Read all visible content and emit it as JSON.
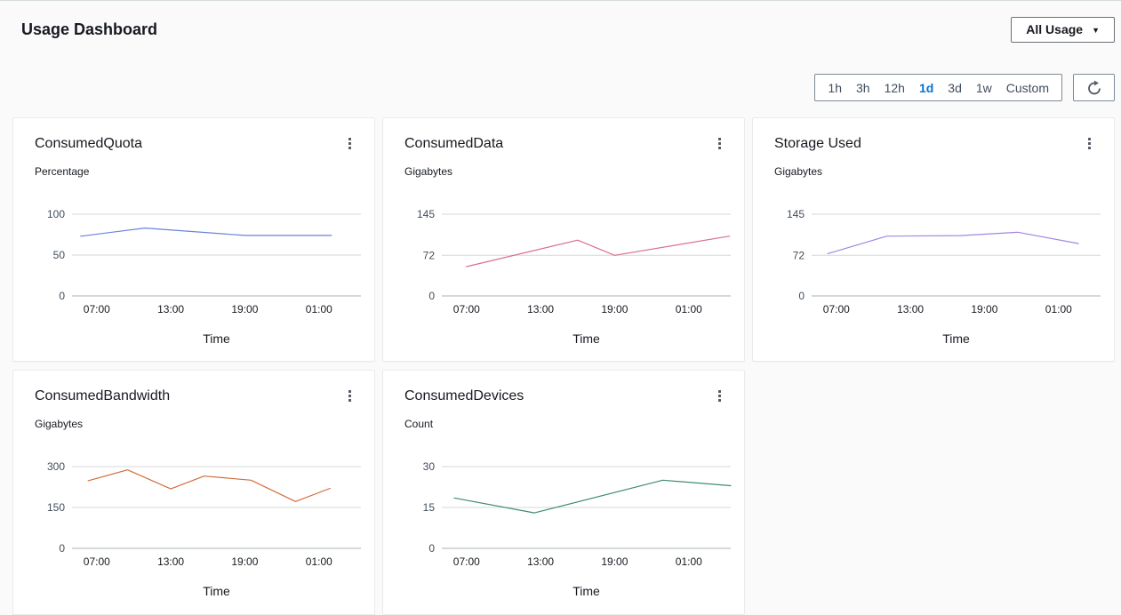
{
  "page": {
    "title": "Usage Dashboard"
  },
  "header": {
    "dashboard_dropdown": {
      "label": "All Usage",
      "caret_icon": "▼"
    }
  },
  "toolbar": {
    "time_ranges": [
      {
        "label": "1h",
        "selected": false
      },
      {
        "label": "3h",
        "selected": false
      },
      {
        "label": "12h",
        "selected": false
      },
      {
        "label": "1d",
        "selected": true
      },
      {
        "label": "3d",
        "selected": false
      },
      {
        "label": "1w",
        "selected": false
      },
      {
        "label": "Custom",
        "selected": false
      }
    ],
    "selected_color": "#0972d3",
    "refresh_icon": "refresh-arrow"
  },
  "charts": [
    {
      "title": "ConsumedQuota",
      "menu_icon": "kebab-vertical",
      "chart_data": {
        "type": "line",
        "title": "ConsumedQuota",
        "ylabel": "Percentage",
        "xlabel": "Time",
        "x_ticks": [
          "07:00",
          "13:00",
          "19:00",
          "01:00"
        ],
        "x_tick_hours": [
          2,
          8,
          14,
          20
        ],
        "x_axis_start": "05:00",
        "x_axis_span_hours": 23.4,
        "y_ticks": [
          0,
          50,
          100
        ],
        "ylim": [
          0,
          100
        ],
        "grid": true,
        "legend": "none",
        "line_color": "#6a82de",
        "x_unit": "hours_after_axis_start",
        "points": [
          [
            0.7,
            73
          ],
          [
            5.9,
            83
          ],
          [
            14,
            74
          ],
          [
            21,
            74
          ]
        ]
      }
    },
    {
      "title": "ConsumedData",
      "menu_icon": "kebab-vertical",
      "chart_data": {
        "type": "line",
        "title": "ConsumedData",
        "ylabel": "Gigabytes",
        "xlabel": "Time",
        "x_ticks": [
          "07:00",
          "13:00",
          "19:00",
          "01:00"
        ],
        "x_tick_hours": [
          2,
          8,
          14,
          20
        ],
        "x_axis_start": "05:00",
        "x_axis_span_hours": 23.4,
        "y_ticks": [
          0,
          72,
          145
        ],
        "ylim": [
          0,
          145
        ],
        "grid": true,
        "legend": "none",
        "line_color": "#d9708a",
        "x_unit": "hours_after_axis_start",
        "points": [
          [
            2,
            52
          ],
          [
            11,
            99
          ],
          [
            14,
            72
          ],
          [
            23.3,
            106
          ]
        ]
      }
    },
    {
      "title": "Storage Used",
      "menu_icon": "kebab-vertical",
      "chart_data": {
        "type": "line",
        "title": "Storage Used",
        "ylabel": "Gigabytes",
        "xlabel": "Time",
        "x_ticks": [
          "07:00",
          "13:00",
          "19:00",
          "01:00"
        ],
        "x_tick_hours": [
          2,
          8,
          14,
          20
        ],
        "x_axis_start": "05:00",
        "x_axis_span_hours": 23.4,
        "y_ticks": [
          0,
          72,
          145
        ],
        "ylim": [
          0,
          145
        ],
        "grid": true,
        "legend": "none",
        "line_color": "#a287e3",
        "x_unit": "hours_after_axis_start",
        "points": [
          [
            1.3,
            75
          ],
          [
            6.1,
            106
          ],
          [
            12,
            107
          ],
          [
            16.7,
            113
          ],
          [
            21.6,
            93
          ]
        ]
      }
    },
    {
      "title": "ConsumedBandwidth",
      "menu_icon": "kebab-vertical",
      "chart_data": {
        "type": "line",
        "title": "ConsumedBandwidth",
        "ylabel": "Gigabytes",
        "xlabel": "Time",
        "x_ticks": [
          "07:00",
          "13:00",
          "19:00",
          "01:00"
        ],
        "x_tick_hours": [
          2,
          8,
          14,
          20
        ],
        "x_axis_start": "05:00",
        "x_axis_span_hours": 23.4,
        "y_ticks": [
          0,
          150,
          300
        ],
        "ylim": [
          0,
          300
        ],
        "grid": true,
        "legend": "none",
        "line_color": "#d06e3d",
        "x_unit": "hours_after_axis_start",
        "points": [
          [
            1.3,
            248
          ],
          [
            4.5,
            288
          ],
          [
            8,
            218
          ],
          [
            10.7,
            265
          ],
          [
            14.5,
            250
          ],
          [
            18.1,
            172
          ],
          [
            20.9,
            220
          ]
        ]
      }
    },
    {
      "title": "ConsumedDevices",
      "menu_icon": "kebab-vertical",
      "chart_data": {
        "type": "line",
        "title": "ConsumedDevices",
        "ylabel": "Count",
        "xlabel": "Time",
        "x_ticks": [
          "07:00",
          "13:00",
          "19:00",
          "01:00"
        ],
        "x_tick_hours": [
          2,
          8,
          14,
          20
        ],
        "x_axis_start": "05:00",
        "x_axis_span_hours": 23.4,
        "y_ticks": [
          0,
          15,
          30
        ],
        "ylim": [
          0,
          30
        ],
        "grid": true,
        "legend": "none",
        "line_color": "#3e8c76",
        "x_unit": "hours_after_axis_start",
        "points": [
          [
            1,
            18.5
          ],
          [
            7.5,
            13
          ],
          [
            17.9,
            25
          ],
          [
            23.4,
            23
          ]
        ]
      }
    }
  ]
}
